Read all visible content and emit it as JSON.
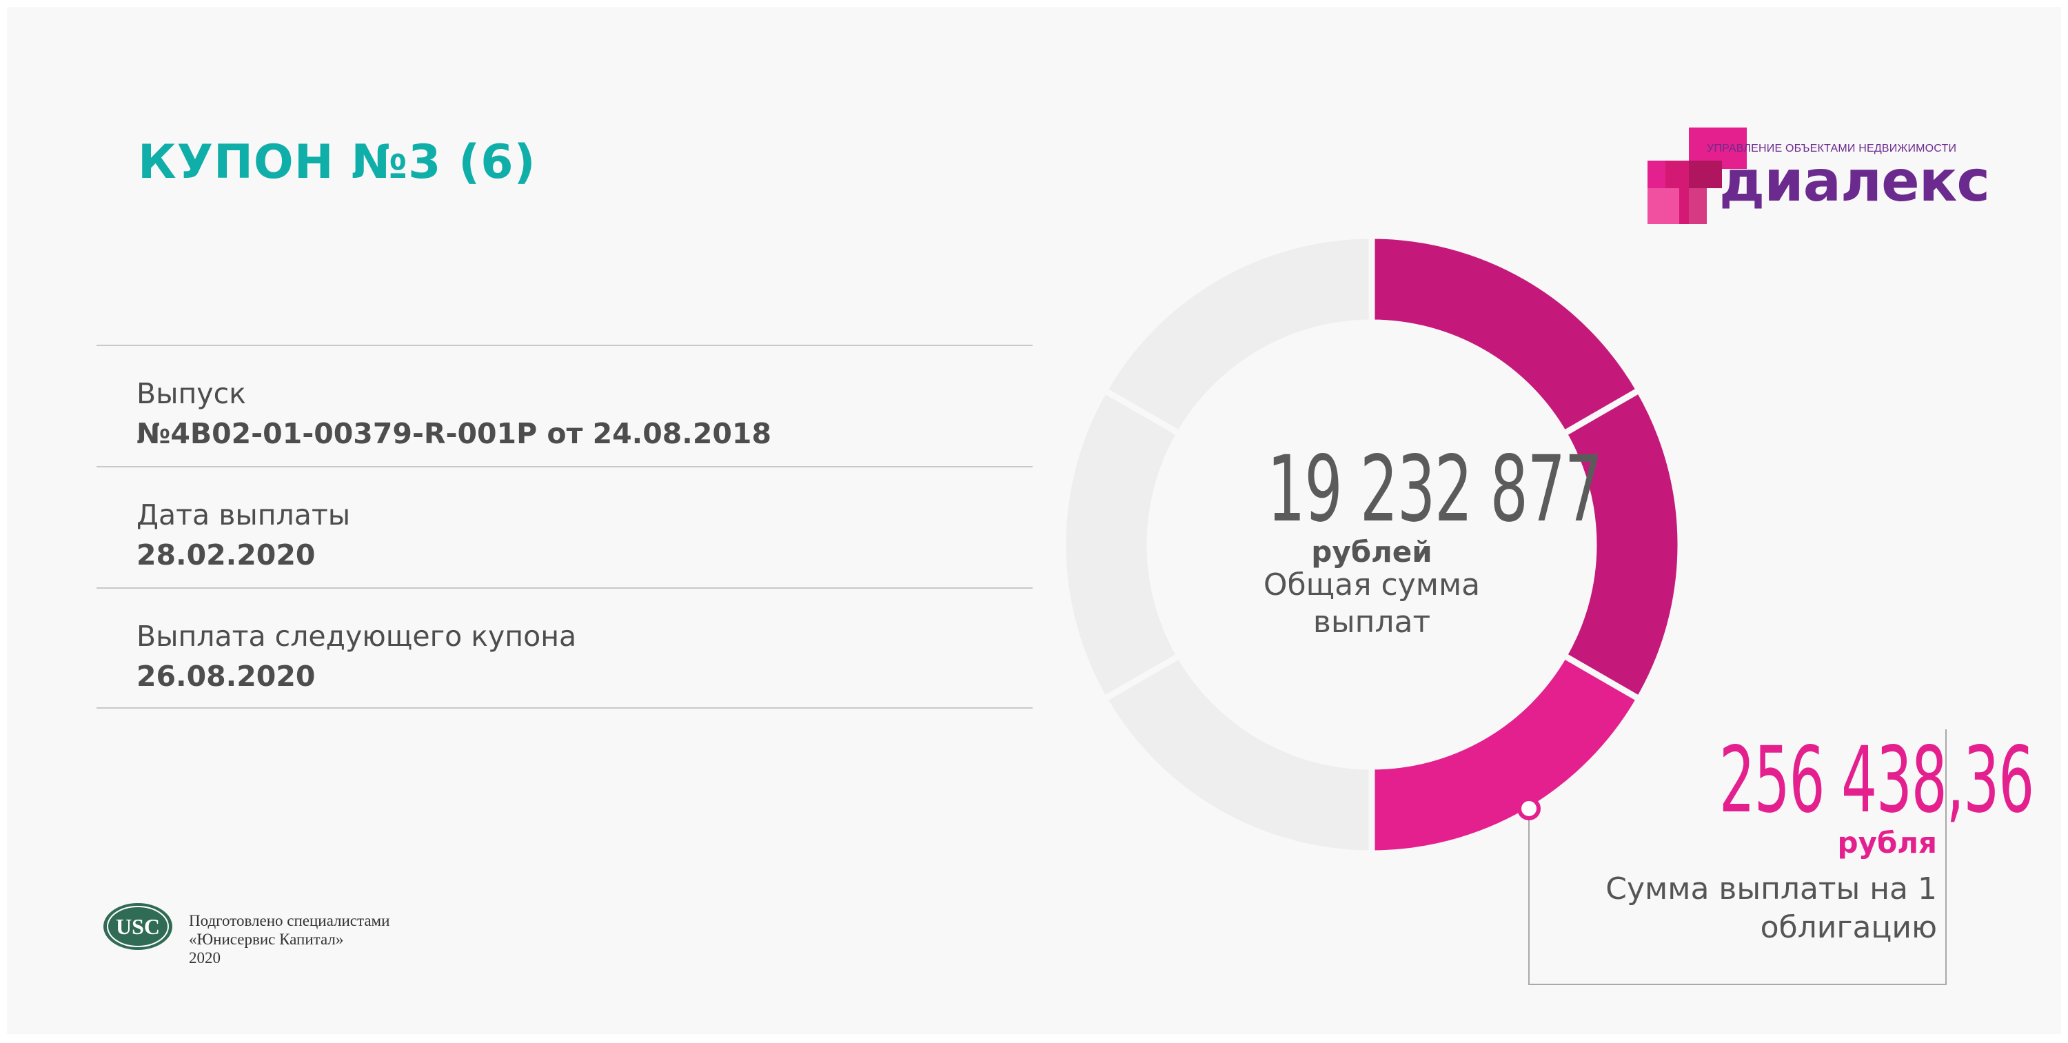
{
  "header": {
    "title": "КУПОН №3 (6)"
  },
  "info": [
    {
      "label": "Выпуск",
      "value": "№4B02-01-00379-R-001P от 24.08.2018"
    },
    {
      "label": "Дата выплаты",
      "value": "28.02.2020"
    },
    {
      "label": "Выплата следующего купона",
      "value": "26.08.2020"
    }
  ],
  "total": {
    "amount": "19 232 877",
    "unit": "рублей",
    "caption": "Общая сумма выплат"
  },
  "coupon": {
    "amount": "256 438,36",
    "unit": "рубля",
    "caption": "Сумма выплаты на 1 облигацию"
  },
  "progress": {
    "coupons_paid": 3,
    "coupons_total": 6
  },
  "logo": {
    "tagline": "УПРАВЛЕНИЕ ОБЪЕКТАМИ НЕДВИЖИМОСТИ",
    "name": "диалекс",
    "icon": "dialex-logo-icon"
  },
  "footer": {
    "line1": "Подготовлено специалистами",
    "line2": "«Юнисервис Капитал»",
    "year": "2020",
    "logo_text": "USC",
    "icon": "usc-logo-icon"
  },
  "colors": {
    "title": "#0faea9",
    "segment_done": "#c4197a",
    "segment_current": "#e3208e",
    "segment_remaining": "#eeeeee",
    "logo_purple": "#6b2a8e",
    "footer_green": "#2f6b55"
  }
}
